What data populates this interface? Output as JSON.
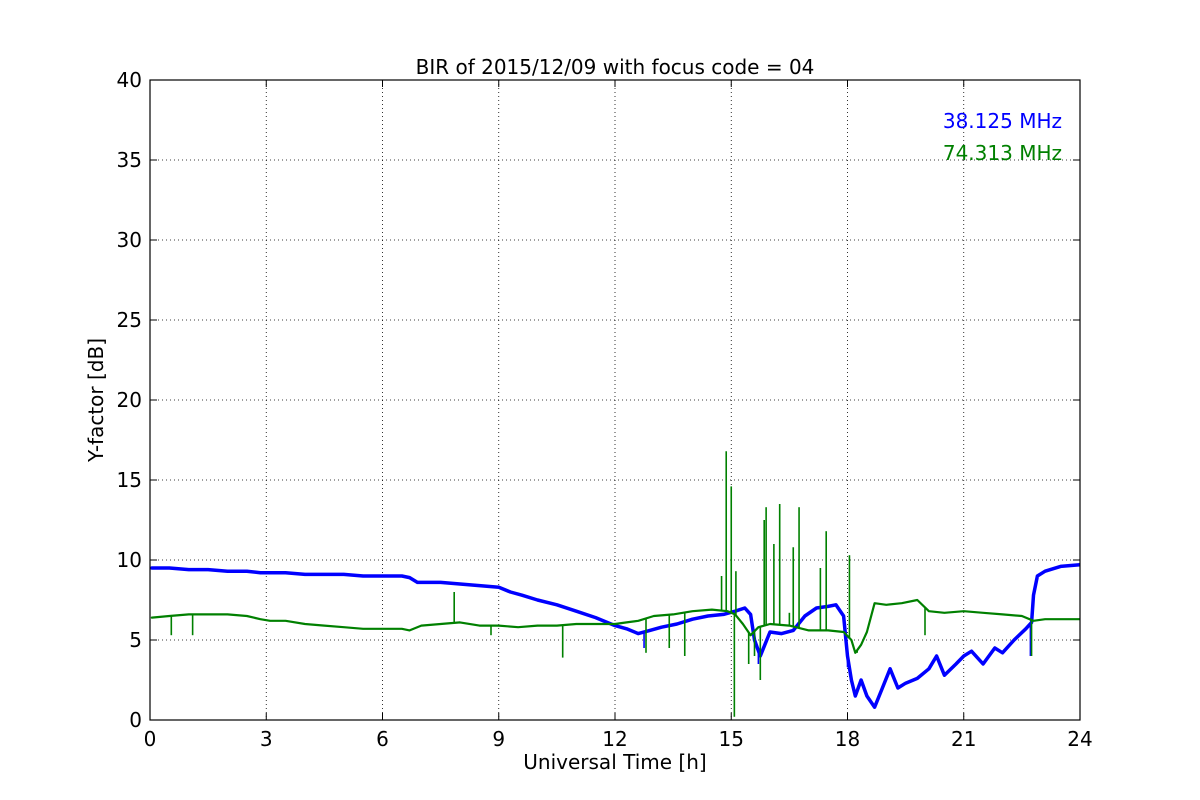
{
  "chart_data": {
    "type": "line",
    "title": "BIR of 2015/12/09 with focus code = 04",
    "xlabel": "Universal Time [h]",
    "ylabel": "Y-factor [dB]",
    "xlim": [
      0,
      24
    ],
    "ylim": [
      0,
      40
    ],
    "xticks": [
      0,
      3,
      6,
      9,
      12,
      15,
      18,
      21,
      24
    ],
    "yticks": [
      0,
      5,
      10,
      15,
      20,
      25,
      30,
      35,
      40
    ],
    "grid": true,
    "legend_placement": "top-right",
    "series": [
      {
        "name": "38.125 MHz",
        "color": "#0000ff",
        "x": [
          0.05,
          0.5,
          1,
          1.5,
          2,
          2.5,
          2.85,
          3.1,
          3.5,
          4,
          4.5,
          5,
          5.5,
          6,
          6.5,
          6.7,
          6.9,
          7.5,
          8,
          8.5,
          9,
          9.3,
          9.6,
          10,
          10.5,
          11,
          11.5,
          12,
          12.3,
          12.6,
          12.9,
          13.2,
          13.6,
          14,
          14.4,
          14.8,
          15.1,
          15.35,
          15.5,
          15.6,
          15.75,
          16,
          16.3,
          16.6,
          16.9,
          17.2,
          17.5,
          17.7,
          17.9,
          18.0,
          18.1,
          18.2,
          18.35,
          18.5,
          18.7,
          18.9,
          19.1,
          19.3,
          19.5,
          19.8,
          20.1,
          20.3,
          20.5,
          20.8,
          21.0,
          21.2,
          21.5,
          21.8,
          22.0,
          22.3,
          22.6,
          22.75,
          22.8,
          22.9,
          23.1,
          23.5,
          24
        ],
        "y": [
          9.5,
          9.5,
          9.4,
          9.4,
          9.3,
          9.3,
          9.2,
          9.2,
          9.2,
          9.1,
          9.1,
          9.1,
          9.0,
          9.0,
          9.0,
          8.9,
          8.6,
          8.6,
          8.5,
          8.4,
          8.3,
          8.0,
          7.8,
          7.5,
          7.2,
          6.8,
          6.4,
          5.9,
          5.7,
          5.4,
          5.6,
          5.8,
          6.0,
          6.3,
          6.5,
          6.6,
          6.8,
          7.0,
          6.6,
          5.0,
          4.0,
          5.5,
          5.4,
          5.6,
          6.5,
          7.0,
          7.1,
          7.2,
          6.5,
          4.0,
          2.5,
          1.5,
          2.5,
          1.5,
          0.8,
          2.0,
          3.2,
          2.0,
          2.3,
          2.6,
          3.2,
          4.0,
          2.8,
          3.5,
          4.0,
          4.3,
          3.5,
          4.5,
          4.2,
          5.0,
          5.7,
          6.1,
          7.8,
          9.0,
          9.3,
          9.6,
          9.7
        ]
      },
      {
        "name": "74.313 MHz",
        "color": "#008000",
        "x": [
          0.05,
          0.5,
          1,
          1.5,
          2,
          2.5,
          2.85,
          3.1,
          3.5,
          4,
          4.5,
          5,
          5.5,
          6,
          6.5,
          6.7,
          7,
          7.5,
          8,
          8.5,
          9,
          9.5,
          10,
          10.5,
          11,
          11.5,
          12,
          12.3,
          12.6,
          13,
          13.5,
          14,
          14.5,
          14.9,
          15.1,
          15.3,
          15.5,
          15.7,
          16,
          16.5,
          17,
          17.5,
          17.9,
          18.1,
          18.2,
          18.35,
          18.5,
          18.7,
          19,
          19.4,
          19.8,
          20.1,
          20.5,
          21,
          21.5,
          22,
          22.5,
          22.8,
          23.1,
          23.5,
          24
        ],
        "y": [
          6.4,
          6.5,
          6.6,
          6.6,
          6.6,
          6.5,
          6.3,
          6.2,
          6.2,
          6.0,
          5.9,
          5.8,
          5.7,
          5.7,
          5.7,
          5.6,
          5.9,
          6.0,
          6.1,
          5.9,
          5.9,
          5.8,
          5.9,
          5.9,
          6.0,
          6.0,
          6.0,
          6.1,
          6.2,
          6.5,
          6.6,
          6.8,
          6.9,
          6.8,
          6.6,
          6.0,
          5.3,
          5.8,
          6.0,
          5.9,
          5.6,
          5.6,
          5.5,
          5.0,
          4.2,
          4.7,
          5.5,
          7.3,
          7.2,
          7.3,
          7.5,
          6.8,
          6.7,
          6.8,
          6.7,
          6.6,
          6.5,
          6.2,
          6.3,
          6.3,
          6.3
        ]
      }
    ],
    "green_spikes": [
      {
        "x": 0.55,
        "y": 5.3
      },
      {
        "x": 1.1,
        "y": 5.3
      },
      {
        "x": 7.85,
        "y": 8.0
      },
      {
        "x": 8.8,
        "y": 5.3
      },
      {
        "x": 10.65,
        "y": 3.9
      },
      {
        "x": 12.8,
        "y": 4.2
      },
      {
        "x": 13.4,
        "y": 4.5
      },
      {
        "x": 13.8,
        "y": 4.0
      },
      {
        "x": 14.75,
        "y": 9.0
      },
      {
        "x": 14.87,
        "y": 16.8
      },
      {
        "x": 15.0,
        "y": 14.6
      },
      {
        "x": 15.08,
        "y": 0.2
      },
      {
        "x": 15.12,
        "y": 9.3
      },
      {
        "x": 15.45,
        "y": 3.5
      },
      {
        "x": 15.6,
        "y": 4.0
      },
      {
        "x": 15.75,
        "y": 2.5
      },
      {
        "x": 15.85,
        "y": 12.5
      },
      {
        "x": 15.9,
        "y": 13.3
      },
      {
        "x": 16.1,
        "y": 11.0
      },
      {
        "x": 16.25,
        "y": 13.5
      },
      {
        "x": 16.5,
        "y": 6.7
      },
      {
        "x": 16.6,
        "y": 10.8
      },
      {
        "x": 16.75,
        "y": 13.3
      },
      {
        "x": 17.3,
        "y": 9.5
      },
      {
        "x": 17.45,
        "y": 11.8
      },
      {
        "x": 18.05,
        "y": 10.3
      },
      {
        "x": 18.25,
        "y": 4.2
      },
      {
        "x": 20.0,
        "y": 5.3
      },
      {
        "x": 22.75,
        "y": 4.0
      }
    ],
    "blue_spikes": [
      {
        "x": 12.75,
        "y": 4.5
      },
      {
        "x": 15.7,
        "y": 3.5
      },
      {
        "x": 18.0,
        "y": 3.3
      },
      {
        "x": 22.72,
        "y": 4.0
      }
    ]
  }
}
